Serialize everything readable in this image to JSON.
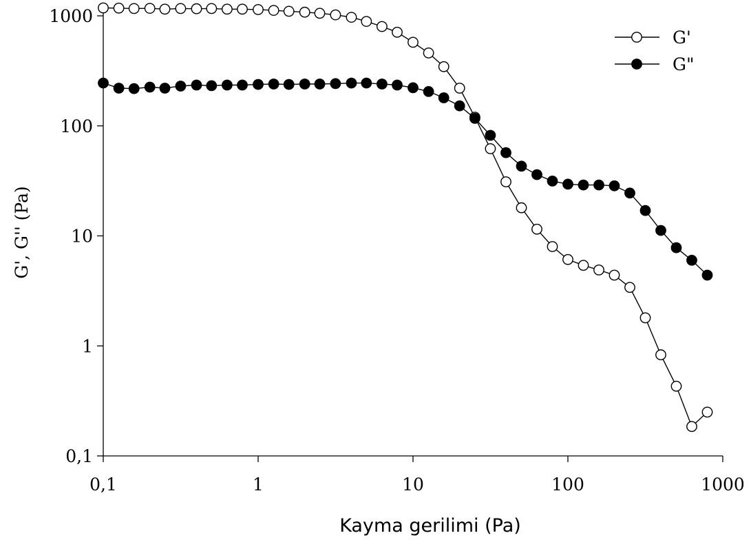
{
  "chart_data": {
    "type": "line",
    "xlabel": "Kayma gerilimi (Pa)",
    "ylabel": "G', G'' (Pa)",
    "x_scale": "log",
    "y_scale": "log",
    "xlim": [
      0.1,
      1000
    ],
    "ylim": [
      0.1,
      1000
    ],
    "x_ticks": [
      {
        "value": 0.1,
        "label": "0,1"
      },
      {
        "value": 1,
        "label": "1"
      },
      {
        "value": 10,
        "label": "10"
      },
      {
        "value": 100,
        "label": "100"
      },
      {
        "value": 1000,
        "label": "1000"
      }
    ],
    "y_ticks": [
      {
        "value": 0.1,
        "label": "0,1"
      },
      {
        "value": 1,
        "label": "1"
      },
      {
        "value": 10,
        "label": "10"
      },
      {
        "value": 100,
        "label": "100"
      },
      {
        "value": 1000,
        "label": "1000"
      }
    ],
    "grid": false,
    "legend_position": "top-right",
    "series": [
      {
        "name": "G'",
        "marker": "open-circle",
        "color": "#000000",
        "points": [
          [
            0.1,
            1180
          ],
          [
            0.126,
            1175
          ],
          [
            0.158,
            1165
          ],
          [
            0.2,
            1170
          ],
          [
            0.25,
            1150
          ],
          [
            0.316,
            1165
          ],
          [
            0.4,
            1160
          ],
          [
            0.5,
            1165
          ],
          [
            0.63,
            1150
          ],
          [
            0.79,
            1150
          ],
          [
            1.0,
            1140
          ],
          [
            1.26,
            1120
          ],
          [
            1.58,
            1100
          ],
          [
            2.0,
            1080
          ],
          [
            2.5,
            1055
          ],
          [
            3.16,
            1020
          ],
          [
            4.0,
            970
          ],
          [
            5.0,
            890
          ],
          [
            6.3,
            800
          ],
          [
            7.9,
            710
          ],
          [
            10.0,
            575
          ],
          [
            12.6,
            460
          ],
          [
            15.8,
            345
          ],
          [
            20.0,
            220
          ],
          [
            25.1,
            120
          ],
          [
            31.6,
            62
          ],
          [
            39.8,
            31
          ],
          [
            50.1,
            18
          ],
          [
            63.1,
            11.5
          ],
          [
            79.4,
            8
          ],
          [
            100,
            6.1
          ],
          [
            125.9,
            5.4
          ],
          [
            158.5,
            4.9
          ],
          [
            199.5,
            4.4
          ],
          [
            251.2,
            3.4
          ],
          [
            316.2,
            1.8
          ],
          [
            398.1,
            0.83
          ],
          [
            501.2,
            0.43
          ],
          [
            631,
            0.185
          ],
          [
            794.3,
            0.25
          ]
        ]
      },
      {
        "name": "G\"",
        "marker": "filled-circle",
        "color": "#000000",
        "points": [
          [
            0.1,
            245
          ],
          [
            0.126,
            220
          ],
          [
            0.158,
            218
          ],
          [
            0.2,
            225
          ],
          [
            0.25,
            220
          ],
          [
            0.316,
            230
          ],
          [
            0.4,
            235
          ],
          [
            0.5,
            232
          ],
          [
            0.63,
            235
          ],
          [
            0.79,
            235
          ],
          [
            1.0,
            238
          ],
          [
            1.26,
            240
          ],
          [
            1.58,
            238
          ],
          [
            2.0,
            240
          ],
          [
            2.5,
            240
          ],
          [
            3.16,
            242
          ],
          [
            4.0,
            245
          ],
          [
            5.0,
            245
          ],
          [
            6.3,
            240
          ],
          [
            7.9,
            235
          ],
          [
            10.0,
            222
          ],
          [
            12.6,
            205
          ],
          [
            15.8,
            180
          ],
          [
            20.0,
            152
          ],
          [
            25.1,
            117
          ],
          [
            31.6,
            82
          ],
          [
            39.8,
            57
          ],
          [
            50.1,
            43
          ],
          [
            63.1,
            36
          ],
          [
            79.4,
            31.5
          ],
          [
            100,
            29.5
          ],
          [
            125.9,
            29
          ],
          [
            158.5,
            29
          ],
          [
            199.5,
            28.5
          ],
          [
            251.2,
            24.5
          ],
          [
            316.2,
            17
          ],
          [
            398.1,
            11.2
          ],
          [
            501.2,
            7.8
          ],
          [
            631,
            6.0
          ],
          [
            794.3,
            4.4
          ]
        ]
      }
    ]
  }
}
